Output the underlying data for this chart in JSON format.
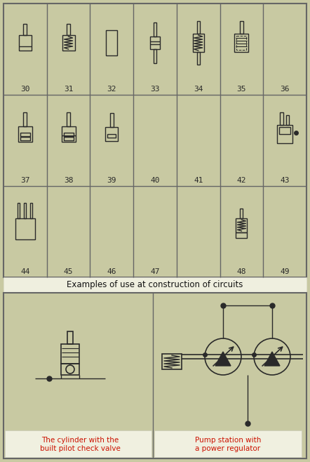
{
  "bg_color": "#c8c9a2",
  "grid_bg": "#c8c9a2",
  "border_color": "#666666",
  "symbol_color": "#2a2a2a",
  "title_text": "Examples of use at construction of circuits",
  "label1": "The cylinder with the\nbuilt pilot check valve",
  "label2": "Pump station with\na power regulator",
  "row1_labels": [
    "30",
    "31",
    "32",
    "33",
    "34",
    "35",
    "36"
  ],
  "row2_labels": [
    "37",
    "38",
    "39",
    "40",
    "41",
    "42",
    "43"
  ],
  "row3_labels": [
    "44",
    "45",
    "46",
    "47",
    "48",
    "49"
  ],
  "fig_width": 4.42,
  "fig_height": 6.58,
  "dpi": 100
}
